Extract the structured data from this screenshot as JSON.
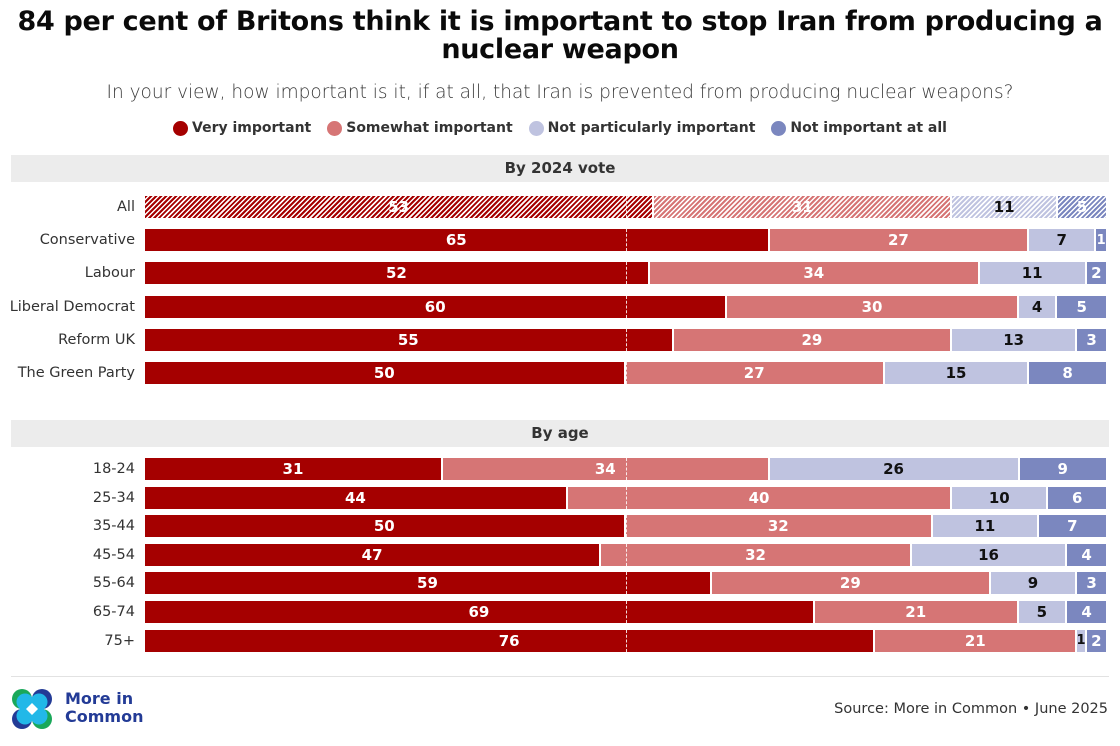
{
  "header": {
    "title": "84 per cent of Britons think it is important to stop Iran from producing a nuclear weapon",
    "subtitle": "In your view, how important is it, if at all, that Iran is prevented from producing nuclear weapons?"
  },
  "legend": [
    {
      "label": "Very important",
      "color": "#a50000"
    },
    {
      "label": "Somewhat important",
      "color": "#d67575"
    },
    {
      "label": "Not particularly important",
      "color": "#bfc3e0"
    },
    {
      "label": "Not important at all",
      "color": "#7b87bf"
    }
  ],
  "chart_data": {
    "type": "bar",
    "orientation": "horizontal",
    "stacked": "100%",
    "title": "84 per cent of Britons think it is important to stop Iran from producing a nuclear weapon",
    "subtitle": "In your view, how important is it, if at all, that Iran is prevented from producing nuclear weapons?",
    "series_names": [
      "Very important",
      "Somewhat important",
      "Not particularly important",
      "Not important at all"
    ],
    "series_colors": [
      "#a50000",
      "#d67575",
      "#bfc3e0",
      "#7b87bf"
    ],
    "value_label_colors": [
      "#ffffff",
      "#ffffff",
      "#111111",
      "#ffffff"
    ],
    "legend_position": "top-center",
    "reference_line": 50,
    "xlim": [
      0,
      100
    ],
    "groups": [
      {
        "title": "By 2024 vote",
        "rows": [
          {
            "label": "All",
            "values": [
              53,
              31,
              11,
              5
            ],
            "hatched": true
          },
          {
            "label": "Conservative",
            "values": [
              65,
              27,
              7,
              1
            ]
          },
          {
            "label": "Labour",
            "values": [
              52,
              34,
              11,
              2
            ]
          },
          {
            "label": "Liberal Democrat",
            "values": [
              60,
              30,
              4,
              5
            ]
          },
          {
            "label": "Reform UK",
            "values": [
              55,
              29,
              13,
              3
            ]
          },
          {
            "label": "The Green Party",
            "values": [
              50,
              27,
              15,
              8
            ]
          }
        ]
      },
      {
        "title": "By age",
        "rows": [
          {
            "label": "18-24",
            "values": [
              31,
              34,
              26,
              9
            ]
          },
          {
            "label": "25-34",
            "values": [
              44,
              40,
              10,
              6
            ]
          },
          {
            "label": "35-44",
            "values": [
              50,
              32,
              11,
              7
            ]
          },
          {
            "label": "45-54",
            "values": [
              47,
              32,
              16,
              4
            ]
          },
          {
            "label": "55-64",
            "values": [
              59,
              29,
              9,
              3
            ]
          },
          {
            "label": "65-74",
            "values": [
              69,
              21,
              5,
              4
            ]
          },
          {
            "label": "75+",
            "values": [
              76,
              21,
              1,
              2
            ]
          }
        ]
      }
    ]
  },
  "footer": {
    "logo_text_line1": "More in",
    "logo_text_line2": "Common",
    "source": "Source: More in Common • June 2025"
  }
}
